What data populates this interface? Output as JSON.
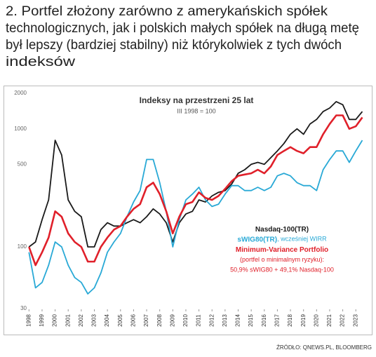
{
  "header": {
    "lines": [
      "2. Portfel złożony zarówno z amerykańskich spółek",
      "technologicznych, jak i polskich małych spółek na długą metę",
      "był lepszy (bardziej stabilny) niż którykolwiek z tych dwóch",
      "indeksów"
    ]
  },
  "chart_data": {
    "type": "line",
    "title": "Indeksy na przestrzeni 25 lat",
    "subtitle": "III 1998 = 100",
    "log_scale": true,
    "grid": false,
    "x": [
      1998,
      1998.5,
      1999,
      1999.5,
      2000,
      2000.5,
      2001,
      2001.5,
      2002,
      2002.5,
      2003,
      2003.5,
      2004,
      2004.5,
      2005,
      2005.5,
      2006,
      2006.5,
      2007,
      2007.5,
      2008,
      2008.5,
      2009,
      2009.5,
      2010,
      2010.5,
      2011,
      2011.5,
      2012,
      2012.5,
      2013,
      2013.5,
      2014,
      2014.5,
      2015,
      2015.5,
      2016,
      2016.5,
      2017,
      2017.5,
      2018,
      2018.5,
      2019,
      2019.5,
      2020,
      2020.5,
      2021,
      2021.5,
      2022,
      2022.5,
      2023,
      2023.5
    ],
    "xlim": [
      1997.5,
      2023.9
    ],
    "xticks": [
      1998,
      1999,
      2000,
      2001,
      2002,
      2003,
      2004,
      2005,
      2006,
      2007,
      2008,
      2009,
      2010,
      2011,
      2012,
      2013,
      2014,
      2015,
      2016,
      2017,
      2018,
      2019,
      2020,
      2021,
      2022,
      2023
    ],
    "ylim": [
      30,
      2000
    ],
    "yticks": [
      30,
      100,
      500,
      1000,
      2000
    ],
    "series": [
      {
        "name": "Nasdaq-100(TR)",
        "color": "#1a1a1a",
        "values": [
          100,
          110,
          170,
          250,
          800,
          600,
          250,
          200,
          180,
          100,
          100,
          140,
          160,
          150,
          150,
          160,
          170,
          160,
          180,
          210,
          190,
          160,
          110,
          160,
          190,
          200,
          250,
          240,
          270,
          290,
          300,
          340,
          420,
          450,
          500,
          520,
          500,
          570,
          650,
          750,
          900,
          1000,
          900,
          1100,
          1200,
          1400,
          1500,
          1700,
          1600,
          1200,
          1200,
          1400
        ]
      },
      {
        "name": "sWIG80(TR)",
        "note": ", wcześniej WIRR",
        "color": "#29a9d6",
        "values": [
          90,
          45,
          50,
          70,
          110,
          100,
          70,
          55,
          50,
          40,
          45,
          60,
          90,
          110,
          130,
          180,
          240,
          300,
          550,
          550,
          350,
          200,
          100,
          170,
          250,
          280,
          320,
          250,
          220,
          230,
          280,
          330,
          330,
          300,
          300,
          320,
          300,
          320,
          400,
          420,
          400,
          350,
          330,
          330,
          300,
          450,
          550,
          650,
          650,
          520,
          650,
          800
        ]
      },
      {
        "name": "Minimum-Variance Portfolio",
        "note": "(portfel o minimalnym ryzyku):",
        "detail": "50,9% sWIG80 + 49,1% Nasdaq-100",
        "color": "#e0202a",
        "values": [
          100,
          70,
          90,
          120,
          200,
          180,
          130,
          110,
          100,
          75,
          75,
          100,
          120,
          140,
          150,
          180,
          210,
          230,
          320,
          350,
          280,
          200,
          130,
          180,
          230,
          240,
          290,
          260,
          250,
          270,
          310,
          360,
          400,
          410,
          420,
          450,
          420,
          480,
          600,
          650,
          700,
          650,
          620,
          700,
          700,
          900,
          1100,
          1300,
          1300,
          1000,
          1050,
          1250
        ]
      }
    ]
  },
  "source": "ŹRÓDŁO: QNEWS.PL, BLOOMBERG"
}
